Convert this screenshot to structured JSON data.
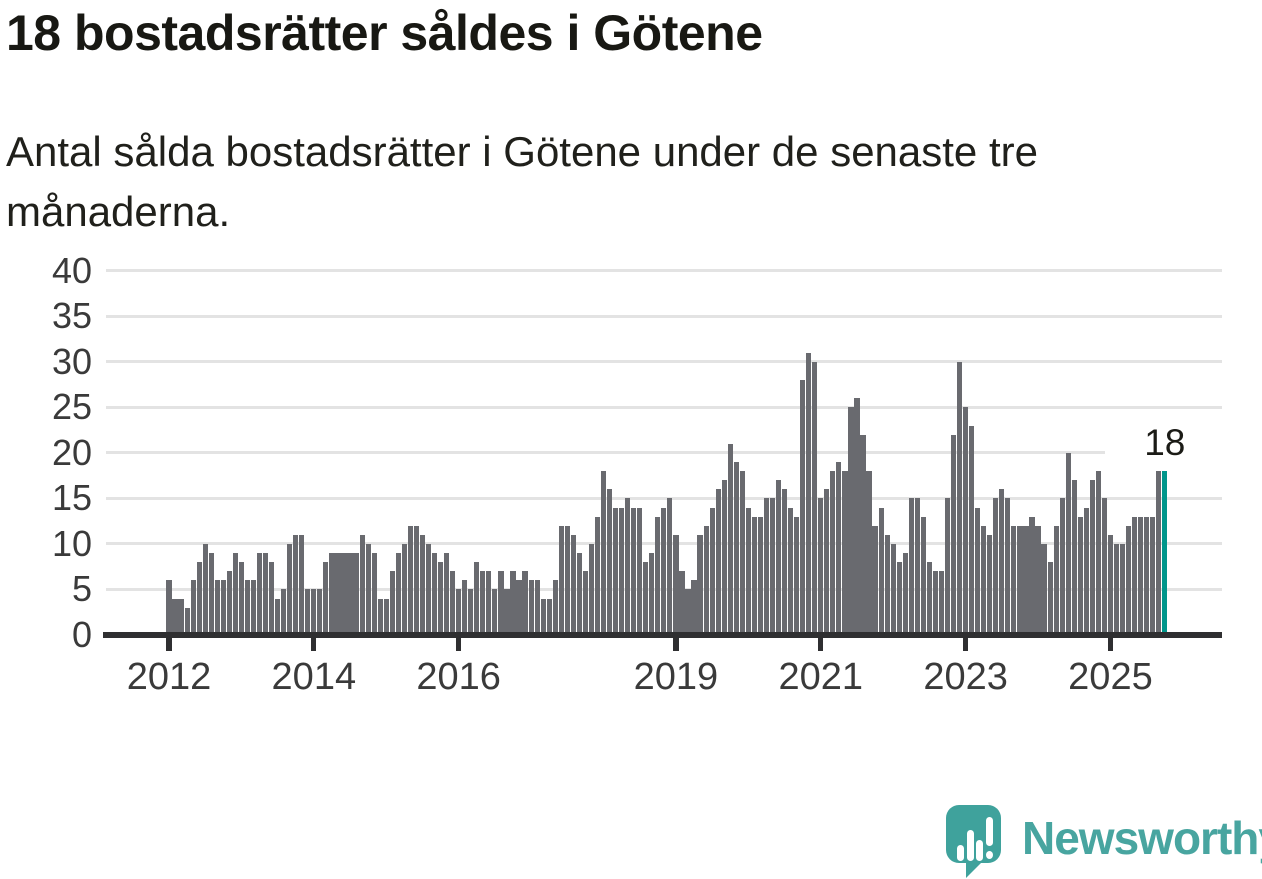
{
  "header": {
    "title": "18 bostadsrätter såldes i Götene",
    "subtitle": "Antal sålda bostadsrätter i Götene under de senaste tre\nmånaderna."
  },
  "chart_data": {
    "type": "bar",
    "title": "18 bostadsrätter såldes i Götene",
    "subtitle": "Antal sålda bostadsrätter i Götene under de senaste tre månaderna.",
    "x_start": "2012-01",
    "x_unit": "month",
    "values": [
      6,
      4,
      4,
      3,
      6,
      8,
      10,
      9,
      6,
      6,
      7,
      9,
      8,
      6,
      6,
      9,
      9,
      8,
      4,
      5,
      10,
      11,
      11,
      5,
      5,
      5,
      8,
      9,
      9,
      9,
      9,
      9,
      11,
      10,
      9,
      4,
      4,
      7,
      9,
      10,
      12,
      12,
      11,
      10,
      9,
      8,
      9,
      7,
      5,
      6,
      5,
      8,
      7,
      7,
      5,
      7,
      5,
      7,
      6,
      7,
      6,
      6,
      4,
      4,
      6,
      12,
      12,
      11,
      9,
      7,
      10,
      13,
      18,
      16,
      14,
      14,
      15,
      14,
      14,
      8,
      9,
      13,
      14,
      15,
      11,
      7,
      5,
      6,
      11,
      12,
      14,
      16,
      17,
      21,
      19,
      18,
      14,
      13,
      13,
      15,
      15,
      17,
      16,
      14,
      13,
      28,
      31,
      30,
      15,
      16,
      18,
      19,
      18,
      25,
      26,
      22,
      18,
      12,
      14,
      11,
      10,
      8,
      9,
      15,
      15,
      13,
      8,
      7,
      7,
      15,
      22,
      30,
      25,
      23,
      14,
      12,
      11,
      15,
      16,
      15,
      12,
      12,
      12,
      13,
      12,
      10,
      8,
      12,
      15,
      20,
      17,
      13,
      14,
      17,
      18,
      15,
      11,
      10,
      10,
      12,
      13,
      13,
      13,
      13,
      18,
      18
    ],
    "highlight_index": 165,
    "highlight_value_label": "18",
    "bar_color": "#696a6f",
    "highlight_color": "#00968b",
    "x_ticks": [
      {
        "label": "2012",
        "month_index": 0
      },
      {
        "label": "2014",
        "month_index": 24
      },
      {
        "label": "2016",
        "month_index": 48
      },
      {
        "label": "2019",
        "month_index": 84
      },
      {
        "label": "2021",
        "month_index": 108
      },
      {
        "label": "2023",
        "month_index": 132
      },
      {
        "label": "2025",
        "month_index": 156
      }
    ],
    "y_ticks": [
      0,
      5,
      10,
      15,
      20,
      25,
      30,
      35,
      40
    ],
    "ylim": [
      0,
      40
    ],
    "grid": "horizontal",
    "legend": "none"
  },
  "footer": {
    "brand": "Newsworthy"
  }
}
